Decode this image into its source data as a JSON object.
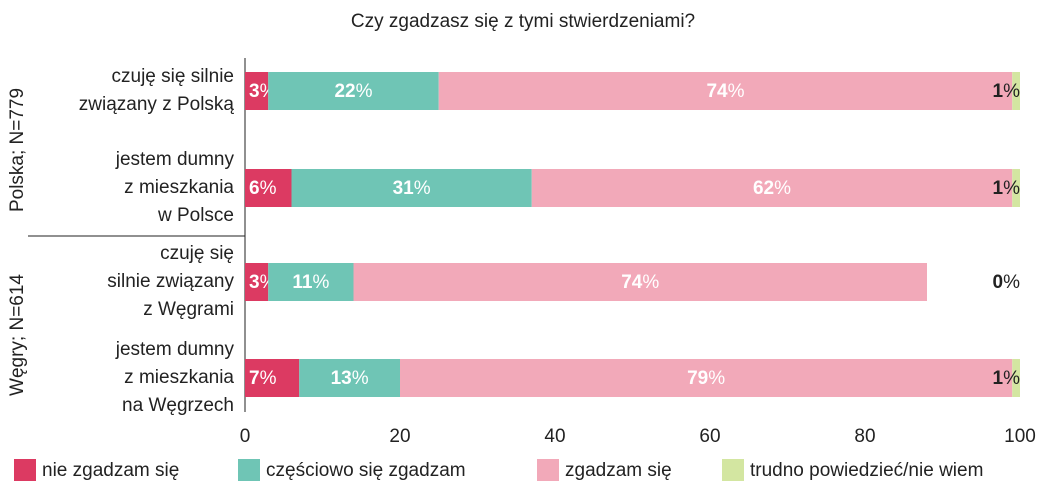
{
  "chart_data": {
    "type": "stacked-bar-horizontal",
    "title": "Czy zgadzasz się z tymi stwierdzeniami?",
    "categories": [
      "czuję się silnie\nzwiązany z Polską",
      "jestem dumny\nz mieszkania\nw Polsce",
      "czuję się\nsilnie związany\nz Węgrami",
      "jestem dumny\nz mieszkania\nna Węgrzech"
    ],
    "groups": [
      "Polska; N=779",
      "Węgry; N=614"
    ],
    "series": [
      {
        "name": "nie zgadzam się",
        "color": "#dc3a62",
        "values": [
          3,
          6,
          3,
          7
        ],
        "value_labels": [
          "3%",
          "6%",
          "3%",
          "7%"
        ]
      },
      {
        "name": "częściowo się zgadzam",
        "color": "#6fc5b5",
        "values": [
          22,
          31,
          11,
          13
        ],
        "value_labels": [
          "22%",
          "31%",
          "11%",
          "13%"
        ]
      },
      {
        "name": "zgadzam się",
        "color": "#f2a9b9",
        "values": [
          74,
          62,
          74,
          79
        ],
        "value_labels": [
          "74%",
          "62%",
          "74%",
          "79%"
        ]
      },
      {
        "name": "trudno powiedzieć/nie wiem",
        "color": "#d3e6a1",
        "values": [
          1,
          1,
          0,
          1
        ],
        "value_labels": [
          "1%",
          "1%",
          "0%",
          "1%"
        ]
      }
    ],
    "xlim": [
      0,
      100
    ],
    "xticks": [
      0,
      20,
      40,
      60,
      80,
      100
    ]
  }
}
